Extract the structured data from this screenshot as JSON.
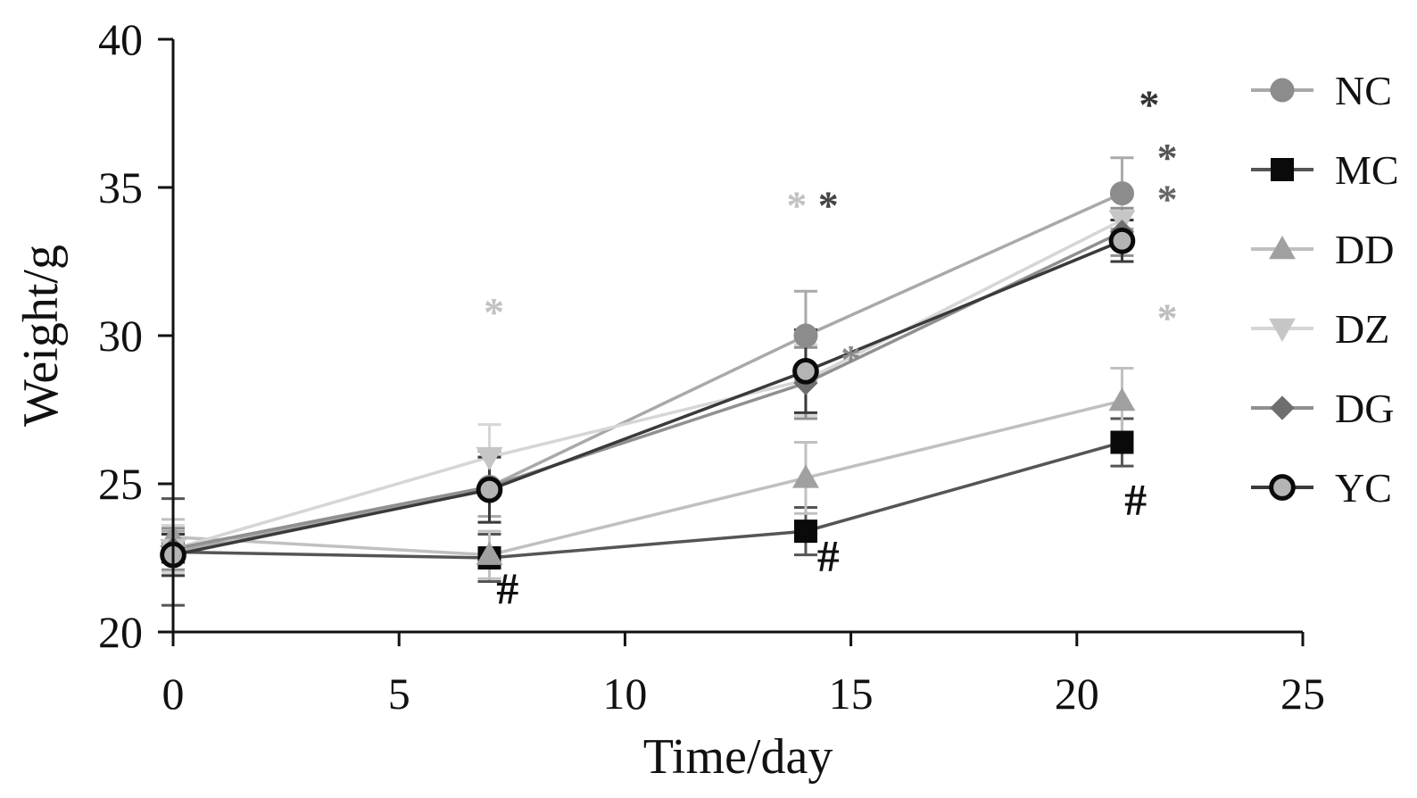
{
  "chart_data": {
    "type": "line",
    "title": "",
    "xlabel": "Time/day",
    "ylabel": "Weight/g",
    "xlim": [
      0,
      25
    ],
    "ylim": [
      20,
      40
    ],
    "xticks": [
      "0",
      "5",
      "10",
      "15",
      "20",
      "25"
    ],
    "yticks": [
      "20",
      "25",
      "30",
      "35",
      "40"
    ],
    "grid": false,
    "legend_position": "right",
    "x": [
      0,
      7,
      14,
      21
    ],
    "series": [
      {
        "name": "NC",
        "marker": "circle",
        "color": "#8c8c8c",
        "line_color": "#a9a9a9",
        "values": [
          22.7,
          24.9,
          30.0,
          34.8
        ],
        "errors": [
          0.7,
          1.0,
          1.5,
          1.2
        ]
      },
      {
        "name": "MC",
        "marker": "square",
        "color": "#0a0a0a",
        "line_color": "#555555",
        "values": [
          22.7,
          22.5,
          23.4,
          26.4
        ],
        "errors": [
          1.8,
          0.8,
          0.8,
          0.8
        ]
      },
      {
        "name": "DD",
        "marker": "triangle-up",
        "color": "#a0a0a0",
        "line_color": "#c0c0c0",
        "values": [
          23.2,
          22.6,
          25.2,
          27.8
        ],
        "errors": [
          0.6,
          0.8,
          1.2,
          1.1
        ]
      },
      {
        "name": "DZ",
        "marker": "triangle-down",
        "color": "#c6c6c6",
        "line_color": "#d6d6d6",
        "values": [
          22.8,
          25.9,
          28.5,
          33.9
        ],
        "errors": [
          0.8,
          1.1,
          1.2,
          0.8
        ]
      },
      {
        "name": "DG",
        "marker": "diamond",
        "color": "#6e6e6e",
        "line_color": "#909090",
        "values": [
          22.8,
          24.9,
          28.4,
          33.5
        ],
        "errors": [
          0.7,
          1.2,
          1.2,
          0.8
        ]
      },
      {
        "name": "YC",
        "marker": "circle-open",
        "color": "#b4b4b4",
        "line_color": "#3a3a3a",
        "values": [
          22.6,
          24.8,
          28.8,
          33.2
        ],
        "errors": [
          0.7,
          1.1,
          1.4,
          0.7
        ]
      }
    ],
    "annotations": [
      {
        "text": "#",
        "x": 7.4,
        "y": 21.5,
        "color": "#111111"
      },
      {
        "text": "#",
        "x": 14.5,
        "y": 22.6,
        "color": "#111111"
      },
      {
        "text": "#",
        "x": 21.3,
        "y": 24.5,
        "color": "#111111"
      },
      {
        "text": "*",
        "x": 7.1,
        "y": 31.0,
        "color": "#c2c2c2"
      },
      {
        "text": "*",
        "x": 13.8,
        "y": 34.6,
        "color": "#c2c2c2"
      },
      {
        "text": "*",
        "x": 14.5,
        "y": 34.6,
        "color": "#444444"
      },
      {
        "text": "*",
        "x": 15.0,
        "y": 29.4,
        "color": "#8a8a8a"
      },
      {
        "text": "*",
        "x": 21.6,
        "y": 38.0,
        "color": "#333333"
      },
      {
        "text": "*",
        "x": 22.0,
        "y": 36.2,
        "color": "#555555"
      },
      {
        "text": "*",
        "x": 22.0,
        "y": 34.8,
        "color": "#666666"
      },
      {
        "text": "*",
        "x": 22.0,
        "y": 30.8,
        "color": "#bdbdbd"
      }
    ]
  }
}
